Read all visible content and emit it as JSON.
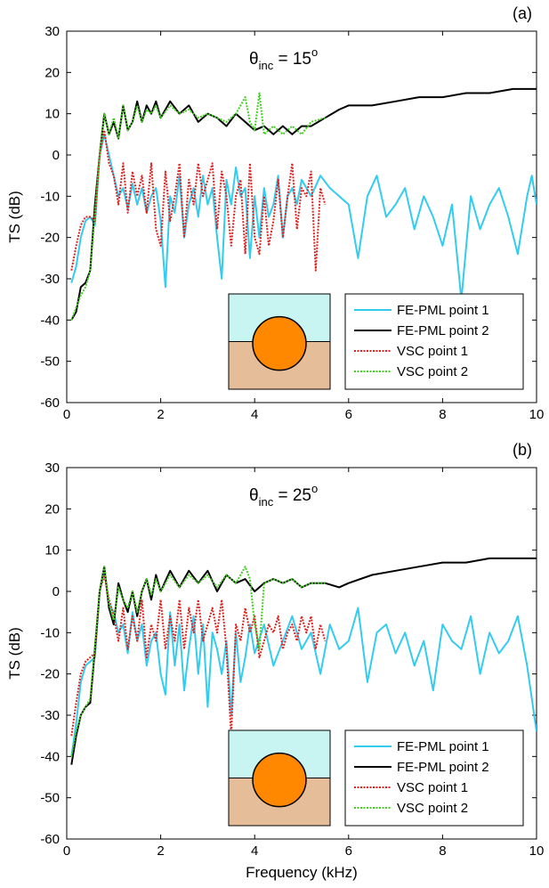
{
  "chart_data": [
    {
      "type": "line",
      "panel_label": "(a)",
      "annotation": {
        "symbol": "θ",
        "subscript": "inc",
        "text": " = 15",
        "superscript": "o"
      },
      "xlabel": "",
      "ylabel": "TS (dB)",
      "xlim": [
        0,
        10
      ],
      "ylim": [
        -60,
        30
      ],
      "xticks": [
        0,
        2,
        4,
        6,
        8,
        10
      ],
      "yticks": [
        -60,
        -50,
        -40,
        -30,
        -20,
        -10,
        0,
        10,
        20,
        30
      ],
      "grid": false,
      "legend_position": "bottom-right",
      "inset": "sphere-on-seabed",
      "series": [
        {
          "name": "FE-PML point 1",
          "color": "#33ccee",
          "dash": "solid",
          "x": [
            0.1,
            0.2,
            0.3,
            0.4,
            0.5,
            0.6,
            0.7,
            0.8,
            0.9,
            1.0,
            1.1,
            1.2,
            1.3,
            1.4,
            1.5,
            1.6,
            1.7,
            1.8,
            1.9,
            2.0,
            2.1,
            2.2,
            2.3,
            2.4,
            2.5,
            2.6,
            2.7,
            2.8,
            2.9,
            3.0,
            3.1,
            3.2,
            3.3,
            3.4,
            3.5,
            3.6,
            3.7,
            3.8,
            3.9,
            4.0,
            4.1,
            4.2,
            4.3,
            4.4,
            4.5,
            4.6,
            4.7,
            4.8,
            4.9,
            5.0,
            5.2,
            5.4,
            5.6,
            5.8,
            6.0,
            6.2,
            6.4,
            6.6,
            6.8,
            7.0,
            7.2,
            7.4,
            7.6,
            7.8,
            8.0,
            8.2,
            8.4,
            8.6,
            8.8,
            9.0,
            9.2,
            9.4,
            9.6,
            9.8,
            9.9,
            10.0
          ],
          "y": [
            -31,
            -27,
            -20,
            -16,
            -15,
            -17,
            0,
            5,
            0,
            -5,
            -10,
            -8,
            -13,
            -7,
            -12,
            -8,
            -14,
            -10,
            -8,
            -16,
            -32,
            -10,
            -14,
            -5,
            -20,
            -12,
            -8,
            -15,
            -5,
            -12,
            -8,
            -20,
            -30,
            -6,
            -12,
            -3,
            -10,
            -8,
            -25,
            -10,
            -20,
            -8,
            -15,
            -12,
            -5,
            -20,
            -10,
            -8,
            -12,
            -6,
            -10,
            -5,
            -8,
            -10,
            -12,
            -25,
            -10,
            -5,
            -15,
            -12,
            -8,
            -18,
            -10,
            -15,
            -22,
            -12,
            -35,
            -10,
            -18,
            -12,
            -8,
            -15,
            -24,
            -10,
            -5,
            -12
          ]
        },
        {
          "name": "FE-PML point 2",
          "color": "#000000",
          "dash": "solid",
          "x": [
            0.1,
            0.2,
            0.3,
            0.4,
            0.5,
            0.6,
            0.7,
            0.8,
            0.9,
            1.0,
            1.1,
            1.2,
            1.3,
            1.4,
            1.5,
            1.6,
            1.7,
            1.8,
            1.9,
            2.0,
            2.2,
            2.4,
            2.6,
            2.8,
            3.0,
            3.2,
            3.4,
            3.6,
            3.8,
            4.0,
            4.2,
            4.4,
            4.6,
            4.8,
            5.0,
            5.2,
            5.5,
            5.8,
            6.0,
            6.5,
            7.0,
            7.5,
            8.0,
            8.5,
            9.0,
            9.5,
            10.0
          ],
          "y": [
            -40,
            -38,
            -32,
            -31,
            -28,
            -12,
            0,
            10,
            5,
            8,
            4,
            12,
            6,
            8,
            13,
            8,
            12,
            10,
            13,
            9,
            13,
            10,
            12,
            8,
            10,
            9,
            7,
            10,
            8,
            6,
            7,
            5,
            7,
            5,
            7,
            7,
            9,
            11,
            12,
            12,
            13,
            14,
            14,
            15,
            15,
            16,
            16
          ]
        },
        {
          "name": "VSC point 1",
          "color": "#dd2222",
          "dash": "dotted",
          "x": [
            0.1,
            0.2,
            0.3,
            0.4,
            0.5,
            0.6,
            0.7,
            0.8,
            0.9,
            1.0,
            1.1,
            1.2,
            1.3,
            1.4,
            1.5,
            1.6,
            1.7,
            1.8,
            1.9,
            2.0,
            2.1,
            2.2,
            2.3,
            2.4,
            2.5,
            2.6,
            2.7,
            2.8,
            2.9,
            3.0,
            3.1,
            3.2,
            3.3,
            3.4,
            3.5,
            3.6,
            3.7,
            3.8,
            3.9,
            4.0,
            4.1,
            4.2,
            4.3,
            4.4,
            4.5,
            4.6,
            4.7,
            4.8,
            4.9,
            5.0,
            5.1,
            5.2,
            5.3,
            5.4,
            5.5
          ],
          "y": [
            -28,
            -22,
            -17,
            -15,
            -15,
            -16,
            0,
            6,
            -2,
            -5,
            -12,
            -2,
            -14,
            -4,
            -10,
            -5,
            -14,
            -2,
            -18,
            -22,
            -4,
            -16,
            -10,
            -2,
            -20,
            -6,
            -12,
            -2,
            -10,
            -6,
            -2,
            -18,
            -4,
            -10,
            -22,
            -10,
            -6,
            -24,
            -2,
            -20,
            -24,
            -10,
            -22,
            -16,
            -6,
            -20,
            -10,
            -2,
            -18,
            -8,
            -10,
            -4,
            -28,
            -8,
            -12
          ]
        },
        {
          "name": "VSC point 2",
          "color": "#44cc22",
          "dash": "dotted",
          "x": [
            0.1,
            0.2,
            0.3,
            0.4,
            0.5,
            0.6,
            0.7,
            0.8,
            0.9,
            1.0,
            1.1,
            1.2,
            1.3,
            1.4,
            1.5,
            1.6,
            1.7,
            1.8,
            1.9,
            2.0,
            2.2,
            2.4,
            2.6,
            2.8,
            3.0,
            3.2,
            3.4,
            3.6,
            3.8,
            3.9,
            4.0,
            4.1,
            4.2,
            4.4,
            4.6,
            4.8,
            5.0,
            5.2,
            5.5
          ],
          "y": [
            -40,
            -37,
            -34,
            -32,
            -28,
            -14,
            0,
            10,
            5,
            9,
            4,
            12,
            6,
            8,
            12,
            8,
            11,
            10,
            12,
            9,
            12,
            10,
            11,
            9,
            10,
            9,
            8,
            10,
            14,
            8,
            6,
            15,
            5,
            7,
            5,
            7,
            5,
            8,
            9
          ]
        }
      ],
      "legend": [
        "FE-PML point 1",
        "FE-PML point 2",
        "VSC point 1",
        "VSC point 2"
      ]
    },
    {
      "type": "line",
      "panel_label": "(b)",
      "annotation": {
        "symbol": "θ",
        "subscript": "inc",
        "text": " = 25",
        "superscript": "o"
      },
      "xlabel": "Frequency (kHz)",
      "ylabel": "TS (dB)",
      "xlim": [
        0,
        10
      ],
      "ylim": [
        -60,
        30
      ],
      "xticks": [
        0,
        2,
        4,
        6,
        8,
        10
      ],
      "yticks": [
        -60,
        -50,
        -40,
        -30,
        -20,
        -10,
        0,
        10,
        20,
        30
      ],
      "grid": false,
      "legend_position": "bottom-right",
      "inset": "sphere-on-seabed",
      "series": [
        {
          "name": "FE-PML point 1",
          "color": "#33ccee",
          "dash": "solid",
          "x": [
            0.1,
            0.2,
            0.3,
            0.4,
            0.5,
            0.6,
            0.7,
            0.8,
            0.9,
            1.0,
            1.1,
            1.2,
            1.3,
            1.4,
            1.5,
            1.6,
            1.7,
            1.8,
            1.9,
            2.0,
            2.1,
            2.2,
            2.3,
            2.4,
            2.5,
            2.6,
            2.7,
            2.8,
            2.9,
            3.0,
            3.1,
            3.2,
            3.3,
            3.4,
            3.5,
            3.6,
            3.7,
            3.8,
            3.9,
            4.0,
            4.2,
            4.4,
            4.6,
            4.8,
            5.0,
            5.2,
            5.4,
            5.6,
            5.8,
            6.0,
            6.2,
            6.4,
            6.6,
            6.8,
            7.0,
            7.2,
            7.4,
            7.6,
            7.8,
            8.0,
            8.2,
            8.4,
            8.6,
            8.8,
            9.0,
            9.2,
            9.4,
            9.6,
            9.8,
            10.0
          ],
          "y": [
            -40,
            -32,
            -22,
            -18,
            -17,
            -16,
            0,
            5,
            -3,
            -5,
            -10,
            -8,
            -15,
            -5,
            -12,
            -8,
            -18,
            -12,
            -10,
            -20,
            -25,
            -5,
            -18,
            -8,
            -24,
            -14,
            -6,
            -20,
            -8,
            -28,
            -10,
            -14,
            -20,
            -12,
            -30,
            -10,
            -22,
            -16,
            -8,
            -15,
            -8,
            -18,
            -12,
            -6,
            -14,
            -10,
            -20,
            -8,
            -14,
            -12,
            -4,
            -22,
            -10,
            -8,
            -15,
            -10,
            -18,
            -12,
            -24,
            -8,
            -12,
            -14,
            -6,
            -20,
            -10,
            -15,
            -12,
            -6,
            -18,
            -34
          ]
        },
        {
          "name": "FE-PML point 2",
          "color": "#000000",
          "dash": "solid",
          "x": [
            0.1,
            0.2,
            0.3,
            0.4,
            0.5,
            0.6,
            0.7,
            0.8,
            0.9,
            1.0,
            1.1,
            1.2,
            1.3,
            1.4,
            1.5,
            1.6,
            1.7,
            1.8,
            1.9,
            2.0,
            2.2,
            2.4,
            2.6,
            2.8,
            3.0,
            3.2,
            3.4,
            3.6,
            3.8,
            4.0,
            4.2,
            4.4,
            4.6,
            4.8,
            5.0,
            5.2,
            5.5,
            5.8,
            6.0,
            6.5,
            7.0,
            7.5,
            8.0,
            8.5,
            9.0,
            9.5,
            10.0
          ],
          "y": [
            -42,
            -35,
            -30,
            -28,
            -27,
            -14,
            0,
            6,
            -4,
            -8,
            2,
            -2,
            -5,
            0,
            -6,
            0,
            3,
            -2,
            4,
            0,
            5,
            1,
            5,
            2,
            5,
            0,
            4,
            2,
            3,
            0,
            2,
            3,
            2,
            3,
            1,
            2,
            2,
            1,
            2,
            4,
            5,
            6,
            7,
            7,
            8,
            8,
            8
          ]
        },
        {
          "name": "VSC point 1",
          "color": "#dd2222",
          "dash": "dotted",
          "x": [
            0.1,
            0.2,
            0.3,
            0.4,
            0.5,
            0.6,
            0.7,
            0.8,
            0.9,
            1.0,
            1.1,
            1.2,
            1.3,
            1.4,
            1.5,
            1.6,
            1.7,
            1.8,
            1.9,
            2.0,
            2.1,
            2.2,
            2.3,
            2.4,
            2.5,
            2.6,
            2.7,
            2.8,
            2.9,
            3.0,
            3.1,
            3.2,
            3.3,
            3.4,
            3.5,
            3.6,
            3.7,
            3.8,
            3.9,
            4.0,
            4.1,
            4.2,
            4.3,
            4.4,
            4.5,
            4.6,
            4.7,
            4.8,
            4.9,
            5.0,
            5.1,
            5.2,
            5.3,
            5.4,
            5.5
          ],
          "y": [
            -35,
            -27,
            -20,
            -17,
            -16,
            -15,
            0,
            4,
            -2,
            -6,
            -12,
            -4,
            -14,
            -6,
            -12,
            -2,
            -16,
            -8,
            -12,
            -2,
            -14,
            -6,
            -12,
            -2,
            -14,
            -4,
            -10,
            -2,
            -12,
            -8,
            -4,
            -10,
            -2,
            -14,
            -35,
            -8,
            -12,
            -4,
            -10,
            -6,
            -16,
            -12,
            -8,
            -10,
            -6,
            -14,
            -10,
            -8,
            -12,
            -6,
            -10,
            -6,
            -14,
            -8,
            -12
          ]
        },
        {
          "name": "VSC point 2",
          "color": "#44cc22",
          "dash": "dotted",
          "x": [
            0.1,
            0.2,
            0.3,
            0.4,
            0.5,
            0.6,
            0.7,
            0.8,
            0.9,
            1.0,
            1.1,
            1.2,
            1.3,
            1.4,
            1.5,
            1.6,
            1.7,
            1.8,
            1.9,
            2.0,
            2.2,
            2.4,
            2.6,
            2.8,
            3.0,
            3.2,
            3.4,
            3.6,
            3.8,
            3.9,
            4.0,
            4.1,
            4.2,
            4.4,
            4.6,
            4.8,
            5.0,
            5.2,
            5.5
          ],
          "y": [
            -40,
            -34,
            -30,
            -28,
            -26,
            -13,
            0,
            6,
            -3,
            -7,
            1,
            -2,
            -4,
            0,
            -5,
            0,
            3,
            -1,
            3,
            0,
            4,
            1,
            4,
            2,
            4,
            1,
            4,
            2,
            6,
            3,
            -8,
            -14,
            2,
            3,
            2,
            3,
            1,
            2,
            2
          ]
        }
      ],
      "legend": [
        "FE-PML point 1",
        "FE-PML point 2",
        "VSC point 1",
        "VSC point 2"
      ]
    }
  ]
}
